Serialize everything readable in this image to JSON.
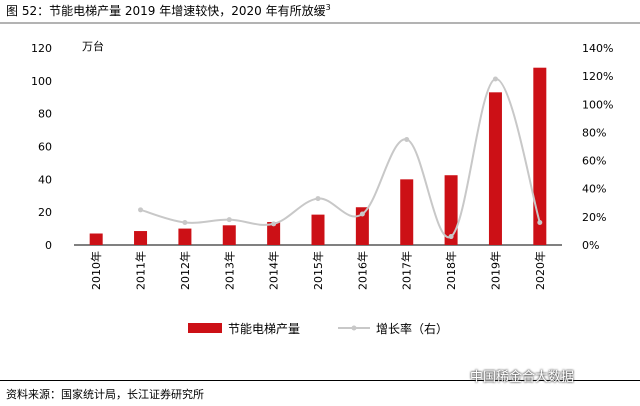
{
  "title": {
    "text": "图 52：节能电梯产量 2019 年增速较快，2020 年有所放缓",
    "sup": "3"
  },
  "source": "资料来源：国家统计局，长江证券研究所",
  "watermark": "中国稀金合大数据",
  "colors": {
    "bar": "#cc1016",
    "line": "#c8c8c8",
    "marker": "#c8c8c8"
  },
  "chart_data": {
    "type": "bar",
    "categories": [
      "2010年",
      "2011年",
      "2012年",
      "2013年",
      "2014年",
      "2015年",
      "2016年",
      "2017年",
      "2018年",
      "2019年",
      "2020年"
    ],
    "series": [
      {
        "name": "节能电梯产量",
        "type": "bar",
        "axis": "left",
        "values": [
          7,
          8.5,
          10,
          12,
          14,
          18.5,
          23,
          40,
          42.5,
          93,
          108
        ]
      },
      {
        "name": "增长率（右）",
        "type": "line",
        "axis": "right",
        "smooth": true,
        "values": [
          null,
          25,
          16,
          18,
          15,
          33,
          22,
          75,
          6,
          118,
          16
        ]
      }
    ],
    "y_left": {
      "unit": "万台",
      "min": 0,
      "max": 120,
      "ticks": [
        0,
        20,
        40,
        60,
        80,
        100,
        120
      ]
    },
    "y_right": {
      "min": 0,
      "max": 140,
      "ticks": [
        "0%",
        "20%",
        "40%",
        "60%",
        "80%",
        "100%",
        "120%",
        "140%"
      ]
    },
    "legend": {
      "position": "bottom",
      "items": [
        "节能电梯产量",
        "增长率（右）"
      ]
    }
  }
}
